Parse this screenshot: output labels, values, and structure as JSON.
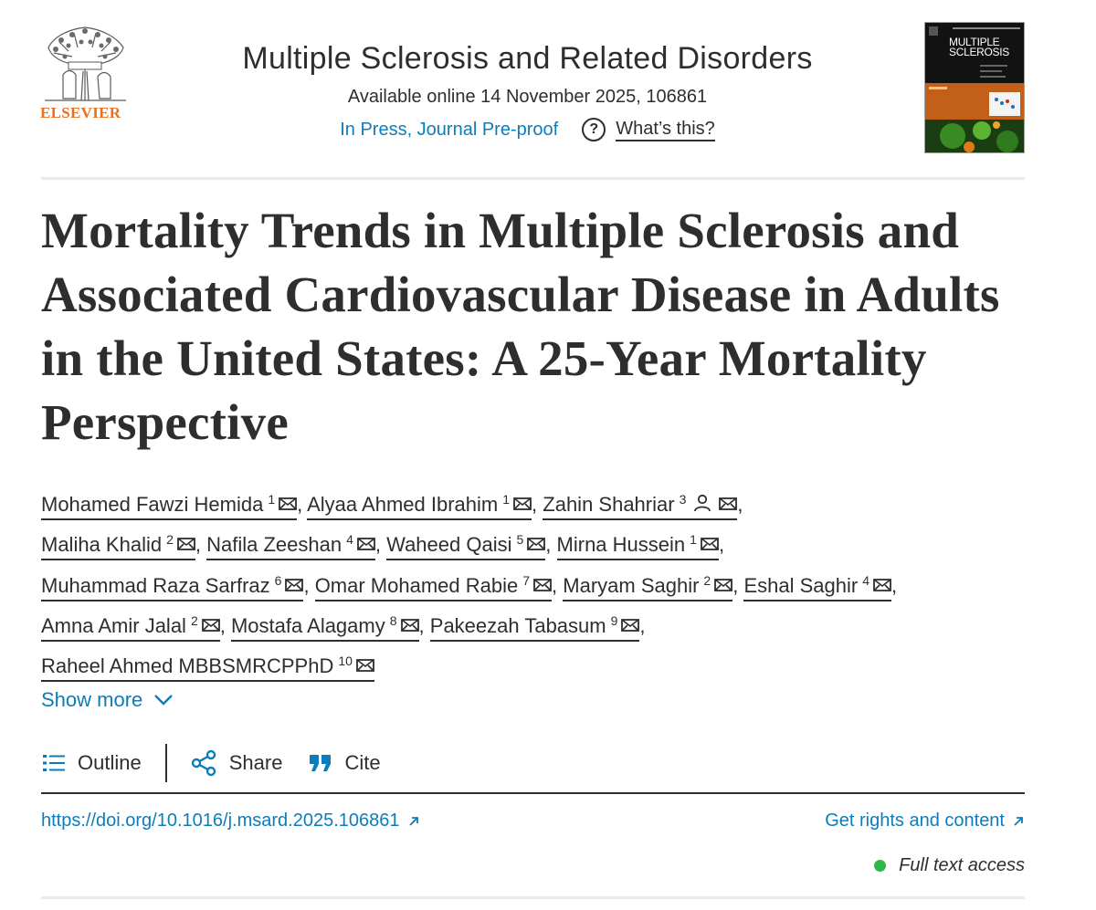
{
  "header": {
    "publisher": "ELSEVIER",
    "journal_title": "Multiple Sclerosis and Related Disorders",
    "available_online": "Available online 14 November 2025, 106861",
    "status_link": "In Press, Journal Pre-proof",
    "whats_this": "What’s this?",
    "cover_title_line1": "MULTIPLE",
    "cover_title_line2": "SCLEROSIS"
  },
  "article": {
    "title": "Mortality Trends in Multiple Sclerosis and Associated Cardiovascular Disease in Adults in the United States: A 25-Year Mortality Perspective"
  },
  "authors": [
    {
      "name": "Mohamed Fawzi Hemida",
      "aff": "1",
      "corresponding": false
    },
    {
      "name": "Alyaa Ahmed Ibrahim",
      "aff": "1",
      "corresponding": false
    },
    {
      "name": "Zahin Shahriar",
      "aff": "3",
      "corresponding": true
    },
    {
      "name": "Maliha Khalid",
      "aff": "2",
      "corresponding": false
    },
    {
      "name": "Nafila Zeeshan",
      "aff": "4",
      "corresponding": false
    },
    {
      "name": "Waheed Qaisi",
      "aff": "5",
      "corresponding": false
    },
    {
      "name": "Mirna Hussein",
      "aff": "1",
      "corresponding": false
    },
    {
      "name": "Muhammad Raza Sarfraz",
      "aff": "6",
      "corresponding": false
    },
    {
      "name": "Omar Mohamed Rabie",
      "aff": "7",
      "corresponding": false
    },
    {
      "name": "Maryam Saghir",
      "aff": "2",
      "corresponding": false
    },
    {
      "name": "Eshal Saghir",
      "aff": "4",
      "corresponding": false
    },
    {
      "name": "Amna Amir Jalal",
      "aff": "2",
      "corresponding": false
    },
    {
      "name": "Mostafa Alagamy",
      "aff": "8",
      "corresponding": false
    },
    {
      "name": "Pakeezah Tabasum",
      "aff": "9",
      "corresponding": false
    },
    {
      "name": "Raheel Ahmed MBBSMRCPPhD",
      "aff": "10",
      "corresponding": false
    }
  ],
  "show_more": "Show more",
  "toolbar": {
    "outline": "Outline",
    "share": "Share",
    "cite": "Cite"
  },
  "links": {
    "doi": "https://doi.org/10.1016/j.msard.2025.106861",
    "rights": "Get rights and content"
  },
  "access": {
    "label": "Full text access",
    "color": "#2eb84b"
  },
  "colors": {
    "link_blue": "#0c7dbb",
    "publisher_orange": "#e9711c",
    "text": "#2e2e2e"
  }
}
